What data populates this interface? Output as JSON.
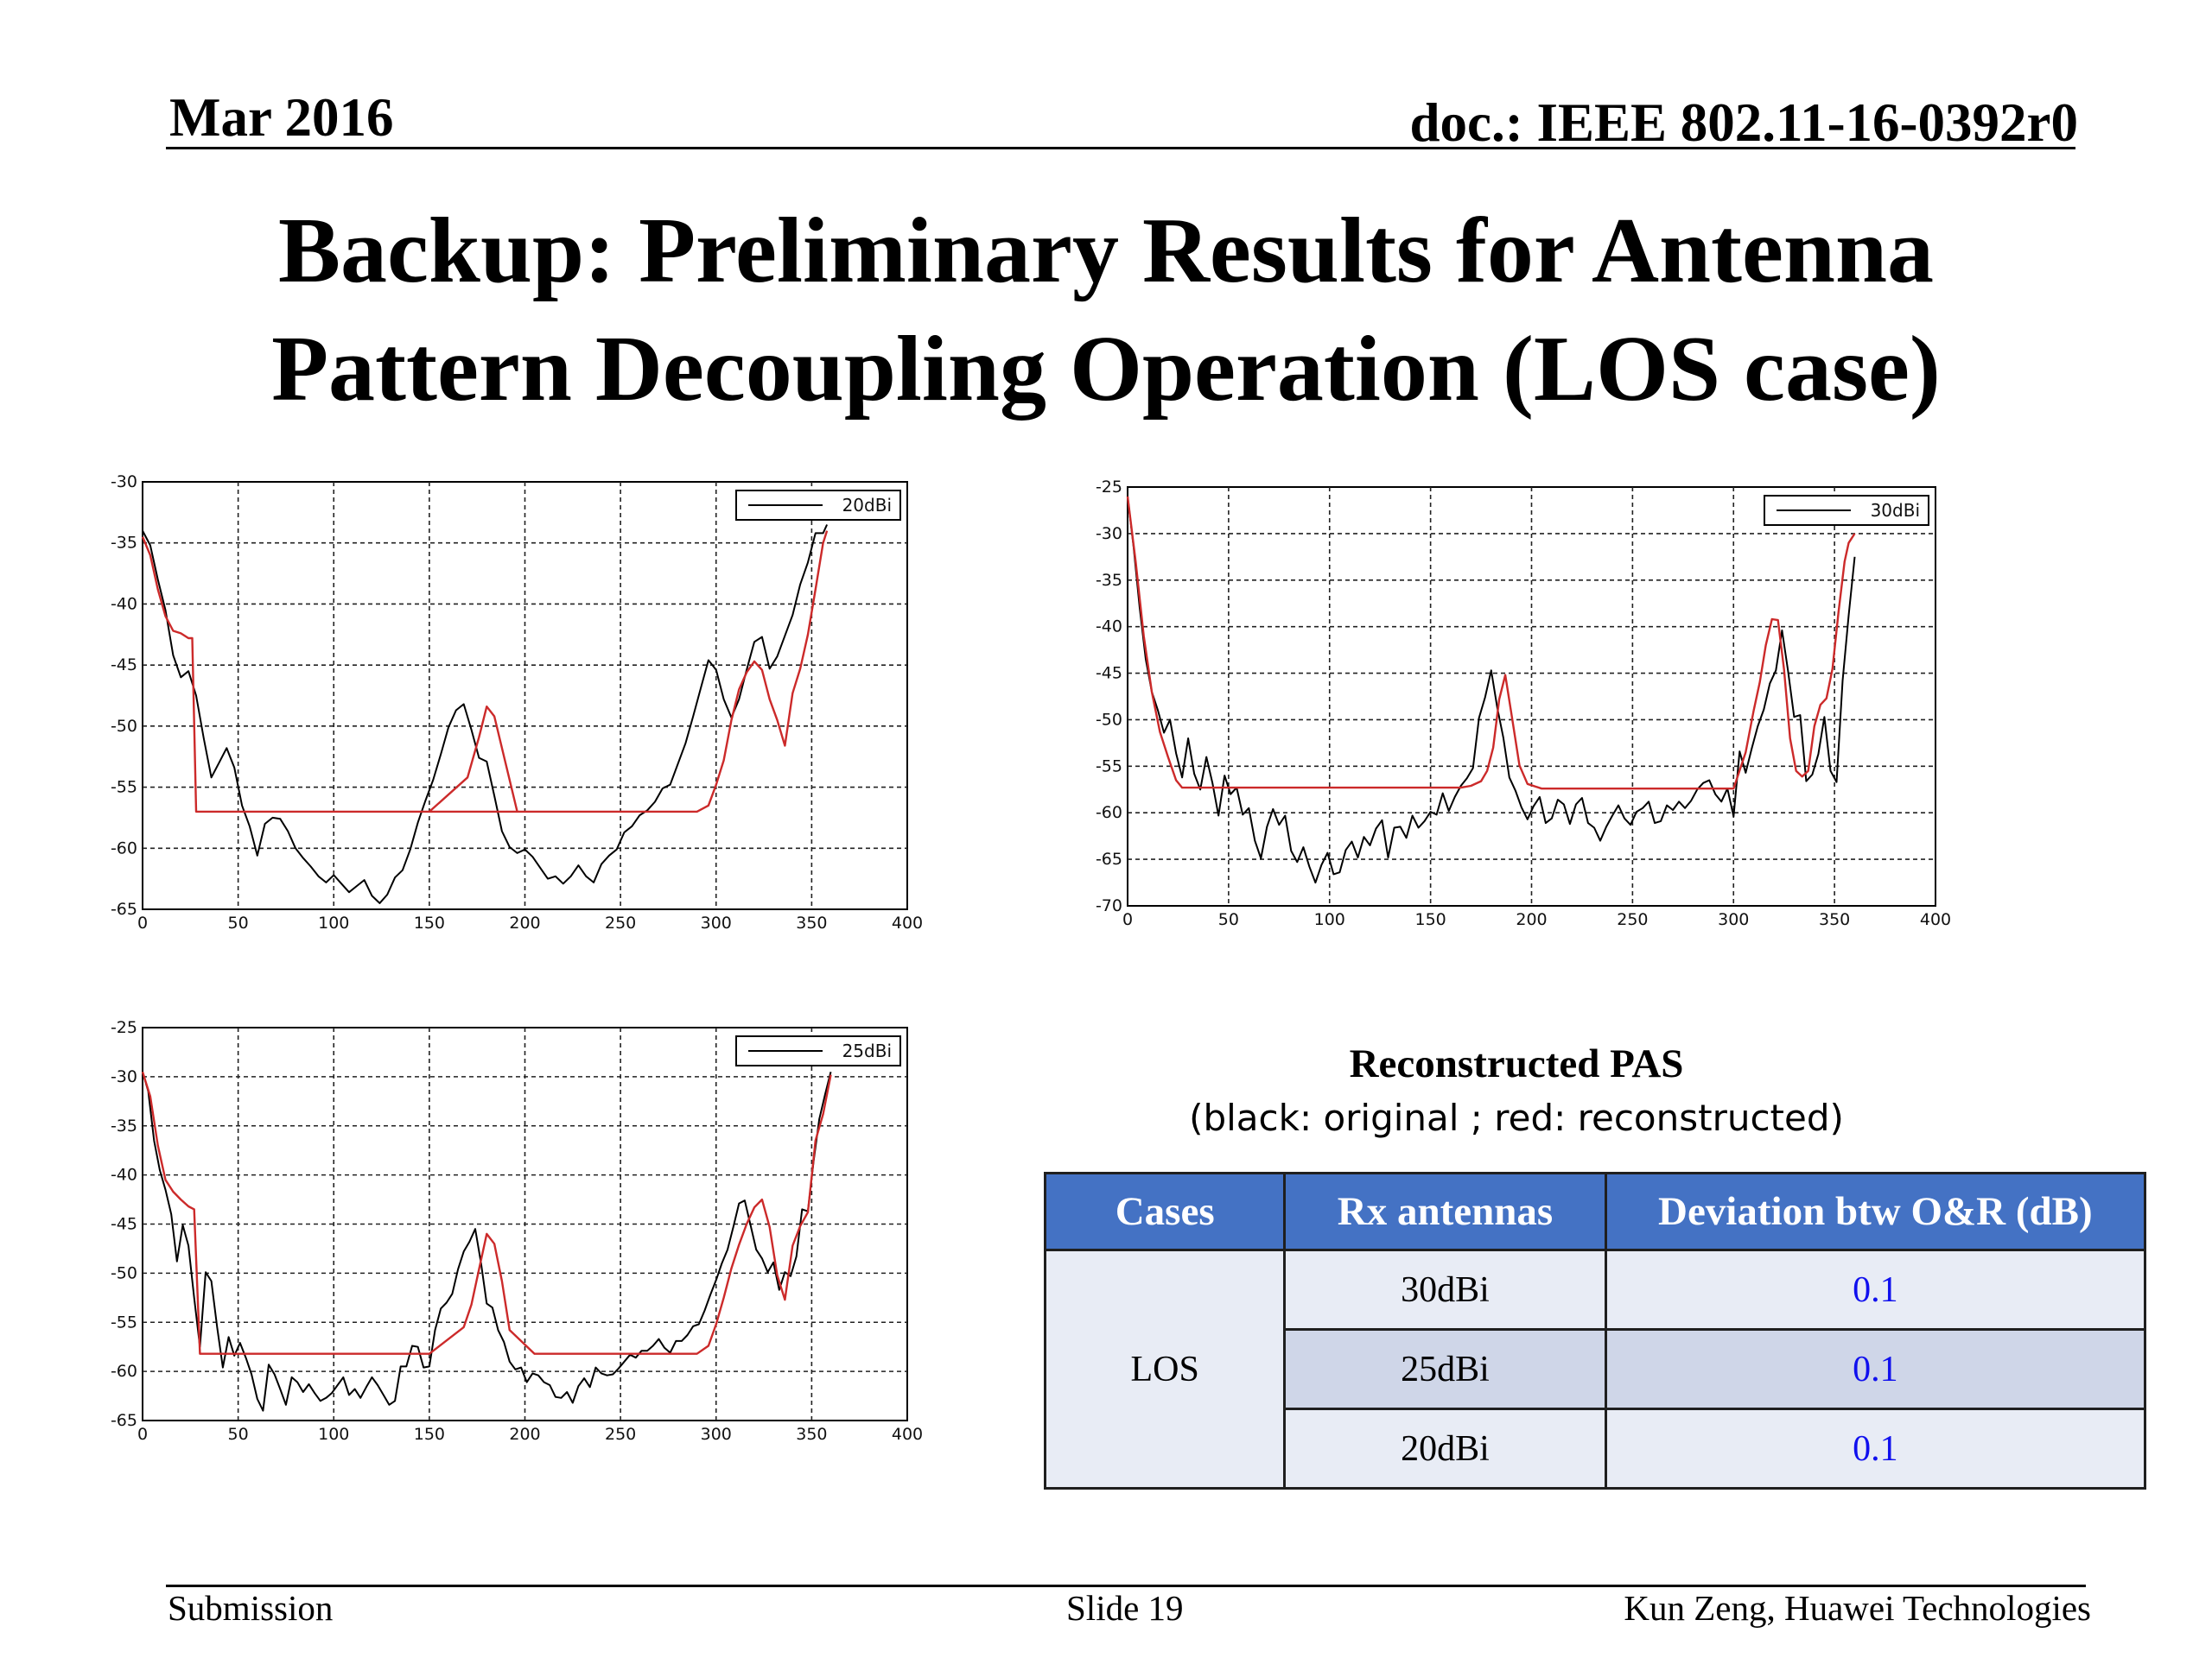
{
  "header": {
    "date": "Mar 2016",
    "doc": "doc.: IEEE 802.11-16-0392r0"
  },
  "title": {
    "line1": "Backup: Preliminary Results for Antenna",
    "line2": "Pattern Decoupling Operation (LOS case)"
  },
  "colors": {
    "original": "#000000",
    "reconstructed": "#cc2a2a",
    "table_header": "#4472c4",
    "deviation_text": "#1010ee"
  },
  "chart_data": [
    {
      "type": "line",
      "legend": "20dBi",
      "legend_position": "top-right",
      "grid": true,
      "xlim": [
        0,
        400
      ],
      "ylim": [
        -65,
        -30
      ],
      "xticks": [
        "0",
        "50",
        "100",
        "150",
        "200",
        "250",
        "300",
        "350",
        "400"
      ],
      "yticks": [
        "-30",
        "-35",
        "-40",
        "-45",
        "-50",
        "-55",
        "-60",
        "-65"
      ],
      "series": [
        {
          "color": "black",
          "x": [
            0,
            4,
            8,
            12,
            16,
            20,
            24,
            28,
            32,
            36,
            40,
            44,
            48,
            52,
            56,
            60,
            64,
            68,
            72,
            76,
            80,
            84,
            88,
            92,
            96,
            100,
            104,
            108,
            112,
            116,
            120,
            124,
            128,
            132,
            136,
            140,
            144,
            148,
            152,
            156,
            160,
            164,
            168,
            172,
            176,
            180,
            184,
            188,
            192,
            196,
            200,
            204,
            208,
            212,
            216,
            220,
            224,
            228,
            232,
            236,
            240,
            244,
            248,
            252,
            256,
            260,
            264,
            268,
            272,
            276,
            280,
            284,
            288,
            292,
            296,
            300,
            304,
            308,
            312,
            316,
            320,
            324,
            328,
            332,
            336,
            340,
            344,
            348,
            352,
            356,
            358
          ],
          "y": [
            -34,
            -35.2,
            -38,
            -40.5,
            -44.2,
            -46,
            -45.5,
            -47.5,
            -51,
            -54.2,
            -53,
            -51.8,
            -53.4,
            -56.5,
            -58.2,
            -60.6,
            -58,
            -57.5,
            -57.6,
            -58.6,
            -60,
            -60.8,
            -61.5,
            -62.3,
            -62.8,
            -62.2,
            -62.9,
            -63.6,
            -63.1,
            -62.6,
            -63.9,
            -64.5,
            -63.8,
            -62.4,
            -61.8,
            -60.1,
            -57.9,
            -56.1,
            -54.4,
            -52.3,
            -50.1,
            -48.7,
            -48.2,
            -50.3,
            -52.6,
            -52.9,
            -55.7,
            -58.6,
            -59.9,
            -60.4,
            -60.1,
            -60.7,
            -61.6,
            -62.5,
            -62.3,
            -62.9,
            -62.3,
            -61.4,
            -62.3,
            -62.8,
            -61.3,
            -60.6,
            -60.1,
            -58.7,
            -58.2,
            -57.3,
            -56.9,
            -56.2,
            -55.1,
            -54.8,
            -53.1,
            -51.4,
            -49.2,
            -46.9,
            -44.6,
            -45.4,
            -47.8,
            -49.3,
            -47.8,
            -45.4,
            -43.1,
            -42.7,
            -45.3,
            -44.3,
            -42.6,
            -40.9,
            -38.4,
            -36.6,
            -34.2,
            -34.2,
            -33.5
          ]
        },
        {
          "color": "red",
          "x": [
            0,
            4,
            8,
            12,
            16,
            20,
            24,
            26,
            28,
            40,
            280,
            290,
            296,
            300,
            304,
            308,
            312,
            316,
            320,
            324,
            328,
            332,
            336,
            340,
            344,
            348,
            352,
            356,
            358
          ],
          "y": [
            -34.5,
            -36,
            -38.8,
            -41,
            -42.2,
            -42.4,
            -42.8,
            -42.8,
            -57,
            -57,
            -57,
            -57,
            -56.5,
            -54.8,
            -52.8,
            -49.5,
            -47,
            -45.6,
            -44.7,
            -45.4,
            -47.8,
            -49.5,
            -51.6,
            -47.3,
            -45.3,
            -42.5,
            -38.8,
            -35,
            -34
          ],
          "x2": [
            150,
            170,
            176,
            180,
            184,
            196
          ],
          "y2": [
            -57,
            -54.2,
            -50.9,
            -48.4,
            -49.2,
            -57
          ]
        }
      ]
    },
    {
      "type": "line",
      "legend": "30dBi",
      "legend_position": "top-right",
      "grid": true,
      "xlim": [
        0,
        400
      ],
      "ylim": [
        -70,
        -25
      ],
      "xticks": [
        "0",
        "50",
        "100",
        "150",
        "200",
        "250",
        "300",
        "350",
        "400"
      ],
      "yticks": [
        "-25",
        "-30",
        "-35",
        "-40",
        "-45",
        "-50",
        "-55",
        "-60",
        "-65",
        "-70"
      ],
      "series": [
        {
          "color": "black",
          "x": [
            0,
            3,
            6,
            9,
            12,
            15,
            18,
            21,
            24,
            27,
            30,
            33,
            36,
            39,
            42,
            45,
            48,
            51,
            54,
            57,
            60,
            63,
            66,
            69,
            72,
            75,
            78,
            81,
            84,
            87,
            90,
            93,
            96,
            99,
            102,
            105,
            108,
            111,
            114,
            117,
            120,
            123,
            126,
            129,
            132,
            135,
            138,
            141,
            144,
            147,
            150,
            153,
            156,
            159,
            162,
            165,
            168,
            171,
            174,
            177,
            180,
            183,
            186,
            189,
            192,
            195,
            198,
            201,
            204,
            207,
            210,
            213,
            216,
            219,
            222,
            225,
            228,
            231,
            234,
            237,
            240,
            243,
            246,
            249,
            252,
            255,
            258,
            261,
            264,
            267,
            270,
            273,
            276,
            279,
            282,
            285,
            288,
            291,
            294,
            297,
            300,
            303,
            306,
            309,
            312,
            315,
            318,
            321,
            324,
            327,
            330,
            333,
            336,
            339,
            342,
            345,
            348,
            351,
            354,
            357,
            360
          ],
          "y": [
            -26,
            -31.5,
            -38,
            -43.5,
            -47,
            -49,
            -51.4,
            -50,
            -53.6,
            -56.2,
            -52,
            -55.8,
            -57.5,
            -54,
            -56.8,
            -60.3,
            -56,
            -58,
            -57.3,
            -60.2,
            -59.5,
            -63,
            -64.9,
            -61.5,
            -59.6,
            -61.3,
            -60.3,
            -64.1,
            -65.3,
            -63.7,
            -65.8,
            -67.5,
            -65.6,
            -64.3,
            -66.6,
            -66.4,
            -64,
            -63.1,
            -64.8,
            -62.6,
            -63.5,
            -61.7,
            -60.8,
            -64.8,
            -61.6,
            -61.5,
            -62.7,
            -60.3,
            -61.6,
            -60.9,
            -59.9,
            -60.2,
            -57.9,
            -59.8,
            -58.3,
            -57.1,
            -56.3,
            -55.2,
            -49.8,
            -47.6,
            -44.7,
            -48.7,
            -51.9,
            -56.2,
            -57.6,
            -59.4,
            -60.7,
            -59.3,
            -58.3,
            -61.1,
            -60.6,
            -58.6,
            -59.1,
            -61.2,
            -59.1,
            -58.4,
            -61.1,
            -61.6,
            -63,
            -61.5,
            -60.3,
            -59.2,
            -60.6,
            -61.3,
            -59.9,
            -59.5,
            -58.8,
            -61.1,
            -60.9,
            -59.2,
            -59.7,
            -58.8,
            -59.5,
            -58.7,
            -57.5,
            -56.8,
            -56.5,
            -58,
            -58.8,
            -57.4,
            -60.4,
            -53.4,
            -55.7,
            -53.1,
            -50.7,
            -48.9,
            -46.1,
            -44.7,
            -40.4,
            -44.8,
            -49.7,
            -49.5,
            -56.6,
            -55.9,
            -53.7,
            -49.7,
            -55.5,
            -56.7,
            -45.8,
            -38.8,
            -32.5
          ]
        },
        {
          "color": "red",
          "x": [
            0,
            4,
            8,
            12,
            16,
            20,
            24,
            27,
            120,
            165,
            170,
            175,
            178,
            181,
            184,
            187,
            190,
            194,
            198,
            205,
            300,
            306,
            310,
            313,
            316,
            319,
            322,
            325,
            328,
            331,
            334,
            337,
            340,
            343,
            346,
            349,
            352,
            355,
            357,
            360
          ],
          "y": [
            -26,
            -33,
            -41,
            -47,
            -51.3,
            -54,
            -56.5,
            -57.3,
            -57.3,
            -57.3,
            -57.1,
            -56.6,
            -55.5,
            -53,
            -47.8,
            -45.2,
            -49.3,
            -54.9,
            -56.9,
            -57.4,
            -57.4,
            -53.5,
            -49,
            -46,
            -42,
            -39.2,
            -39.3,
            -44.6,
            -52,
            -55.5,
            -56.1,
            -55.5,
            -50.7,
            -48.4,
            -47.7,
            -44.5,
            -38.4,
            -33,
            -31,
            -30
          ]
        }
      ]
    },
    {
      "type": "line",
      "legend": "25dBi",
      "legend_position": "top-right",
      "grid": true,
      "xlim": [
        0,
        400
      ],
      "ylim": [
        -65,
        -25
      ],
      "xticks": [
        "0",
        "50",
        "100",
        "150",
        "200",
        "250",
        "300",
        "350",
        "400"
      ],
      "yticks": [
        "-25",
        "-30",
        "-35",
        "-40",
        "-45",
        "-50",
        "-55",
        "-60",
        "-65"
      ],
      "series": [
        {
          "color": "black",
          "x": [
            0,
            3,
            6,
            9,
            12,
            15,
            18,
            21,
            24,
            27,
            30,
            33,
            36,
            39,
            42,
            45,
            48,
            51,
            54,
            57,
            60,
            63,
            66,
            69,
            72,
            75,
            78,
            81,
            84,
            87,
            90,
            93,
            96,
            99,
            102,
            105,
            108,
            111,
            114,
            117,
            120,
            123,
            126,
            129,
            132,
            135,
            138,
            141,
            144,
            147,
            150,
            153,
            156,
            159,
            162,
            165,
            168,
            171,
            174,
            177,
            180,
            183,
            186,
            189,
            192,
            195,
            198,
            201,
            204,
            207,
            210,
            213,
            216,
            219,
            222,
            225,
            228,
            231,
            234,
            237,
            240,
            243,
            246,
            249,
            252,
            255,
            258,
            261,
            264,
            267,
            270,
            273,
            276,
            279,
            282,
            285,
            288,
            291,
            294,
            297,
            300,
            303,
            306,
            309,
            312,
            315,
            318,
            321,
            324,
            327,
            330,
            333,
            336,
            339,
            342,
            345,
            348,
            351,
            354,
            357,
            360
          ],
          "y": [
            -29.5,
            -31.5,
            -36.5,
            -39.5,
            -41.5,
            -44,
            -48.8,
            -45.1,
            -47.2,
            -52.5,
            -57.5,
            -49.9,
            -50.8,
            -55.5,
            -59.6,
            -56.5,
            -58.4,
            -57.1,
            -58.6,
            -60.3,
            -62.8,
            -64,
            -59.3,
            -60.3,
            -61.8,
            -63.4,
            -60.6,
            -61.1,
            -62.1,
            -61.3,
            -62.2,
            -63,
            -62.7,
            -62.2,
            -61.4,
            -60.6,
            -62.4,
            -61.8,
            -62.7,
            -61.6,
            -60.6,
            -61.4,
            -62.4,
            -63.4,
            -63,
            -59.5,
            -59.5,
            -57.4,
            -57.5,
            -59.6,
            -59.5,
            -55.8,
            -53.6,
            -53,
            -52.1,
            -49.6,
            -47.8,
            -46.8,
            -45.5,
            -48.9,
            -53.1,
            -53.5,
            -55.8,
            -57,
            -59,
            -59.8,
            -59.6,
            -61.1,
            -60.2,
            -60.4,
            -61.1,
            -61.4,
            -62.6,
            -62.7,
            -62.1,
            -63.2,
            -61.5,
            -60.7,
            -61.6,
            -59.6,
            -60.2,
            -60.4,
            -60.3,
            -59.7,
            -59,
            -58.3,
            -58.6,
            -57.9,
            -57.9,
            -57.4,
            -56.7,
            -57.6,
            -58.1,
            -56.9,
            -56.9,
            -56.3,
            -55.4,
            -55.2,
            -53.8,
            -52.2,
            -50.7,
            -49,
            -47.6,
            -45.3,
            -42.9,
            -42.6,
            -45.1,
            -47.6,
            -48.5,
            -49.9,
            -48.9,
            -51.7,
            -49.9,
            -50.3,
            -48.3,
            -43.5,
            -43.7,
            -38.6,
            -34.3,
            -31.8,
            -29.5
          ]
        },
        {
          "color": "red",
          "x": [
            0,
            4,
            8,
            12,
            16,
            20,
            24,
            27,
            30,
            34,
            150,
            168,
            172,
            176,
            180,
            184,
            188,
            192,
            205,
            290,
            296,
            300,
            304,
            308,
            312,
            316,
            320,
            324,
            328,
            332,
            336,
            340,
            344,
            348,
            352,
            356,
            360
          ],
          "y": [
            -29.5,
            -32,
            -37,
            -40.5,
            -41.7,
            -42.5,
            -43.2,
            -43.5,
            -58.2,
            -58.2,
            -58.2,
            -55.5,
            -53.2,
            -49.6,
            -46,
            -47,
            -50.8,
            -55.8,
            -58.2,
            -58.2,
            -57.4,
            -55.2,
            -52.5,
            -49.5,
            -47.1,
            -45,
            -43.3,
            -42.5,
            -45.3,
            -50.2,
            -52.7,
            -47.2,
            -45.2,
            -43.8,
            -36.5,
            -33.8,
            -29.8
          ]
        }
      ]
    }
  ],
  "caption": {
    "title": "Reconstructed PAS",
    "subtitle": "(black: original ;    red: reconstructed)"
  },
  "table": {
    "headers": [
      "Cases",
      "Rx antennas",
      "Deviation btw O&R (dB)"
    ],
    "case": "LOS",
    "rows": [
      {
        "antenna": "30dBi",
        "deviation": "0.1"
      },
      {
        "antenna": "25dBi",
        "deviation": "0.1"
      },
      {
        "antenna": "20dBi",
        "deviation": "0.1"
      }
    ]
  },
  "footer": {
    "left": "Submission",
    "center": "Slide 19",
    "right": "Kun Zeng, Huawei Technologies"
  }
}
